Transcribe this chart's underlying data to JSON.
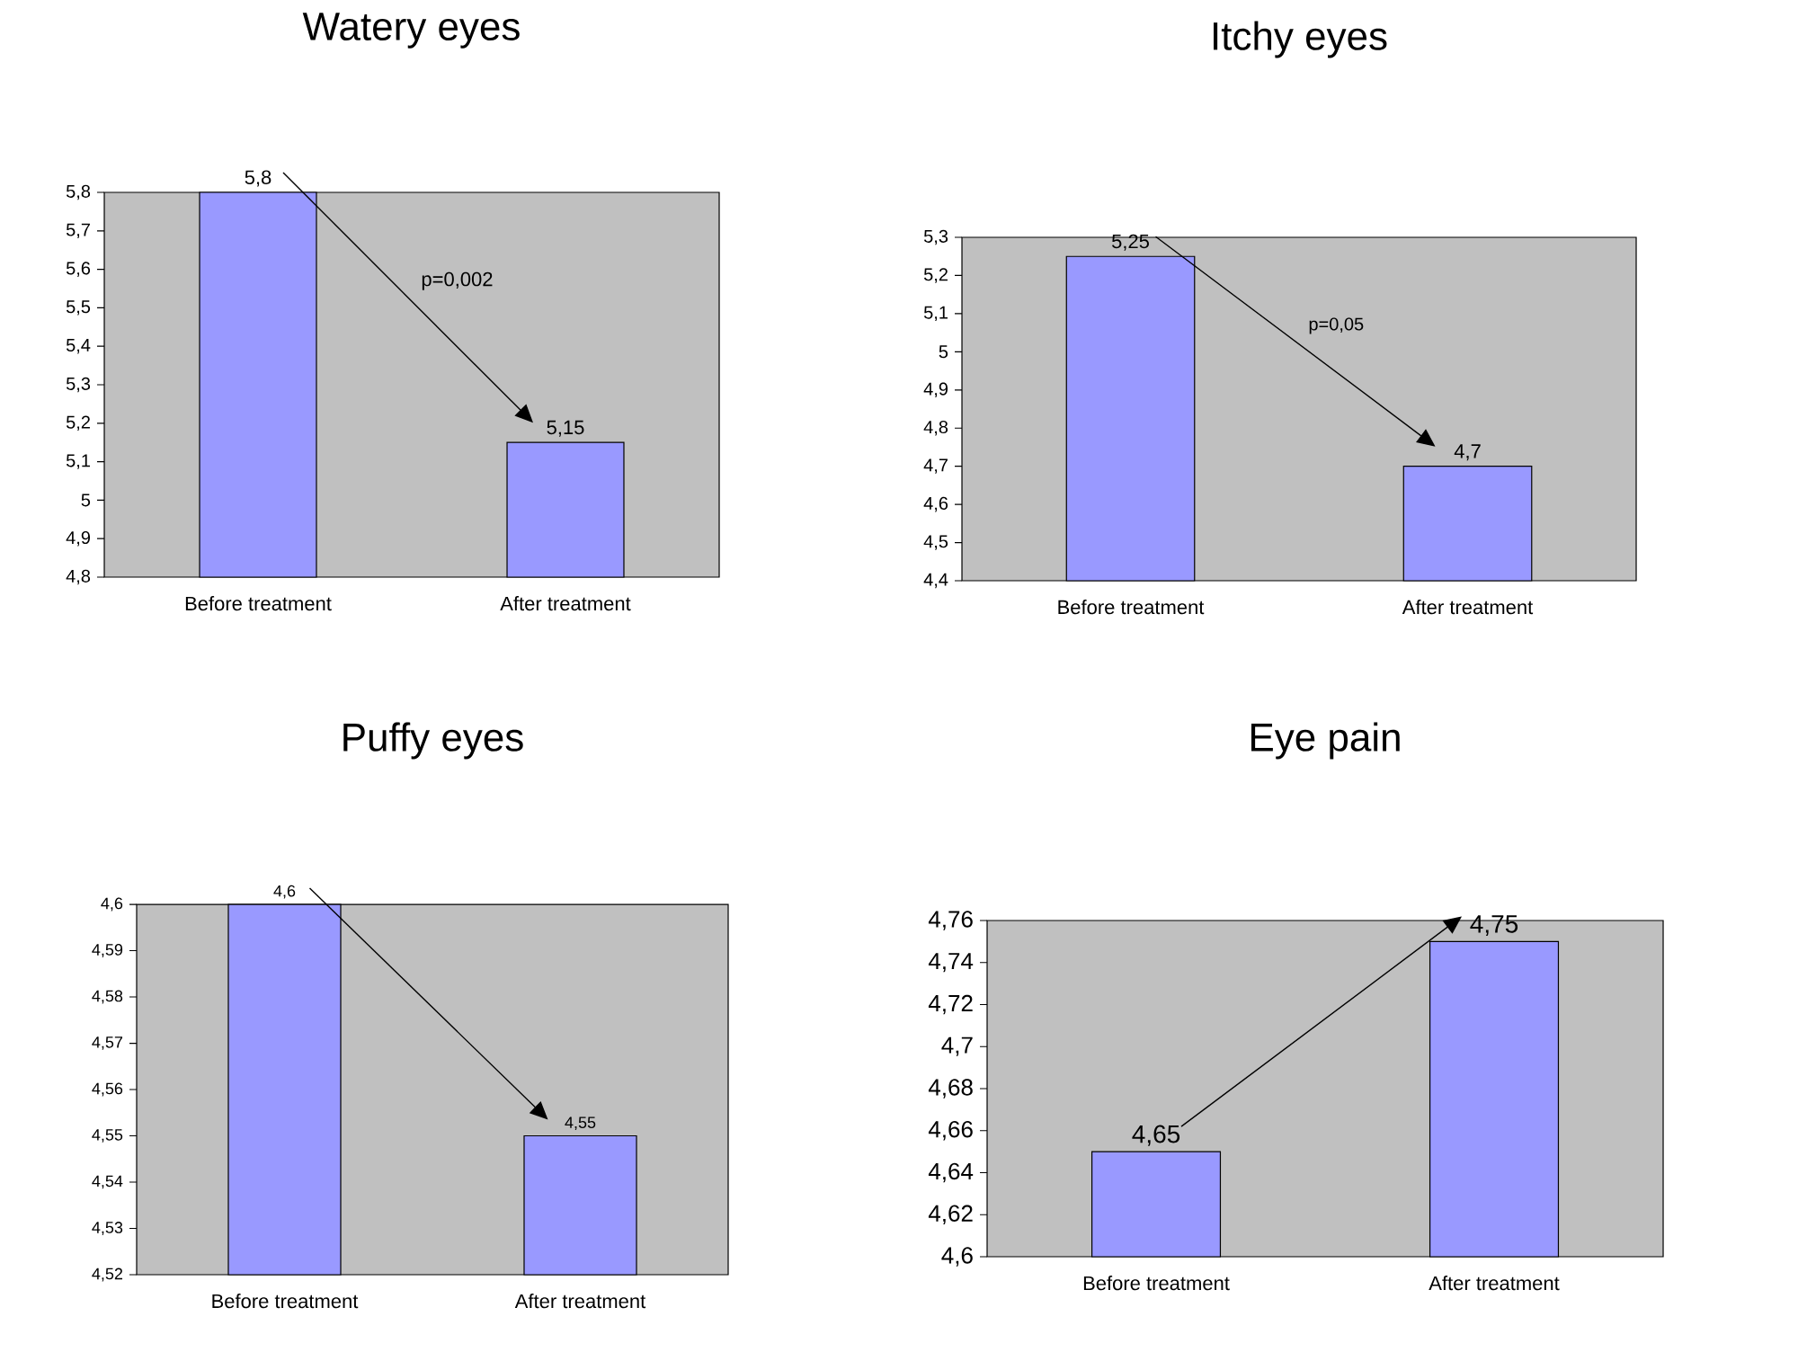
{
  "chart_data": [
    {
      "type": "bar",
      "title": "Watery eyes",
      "categories": [
        "Before treatment",
        "After treatment"
      ],
      "values": [
        5.8,
        5.15
      ],
      "value_labels": [
        "5,8",
        "5,15"
      ],
      "color": "#9999ff",
      "ylim": [
        4.8,
        5.8
      ],
      "yticks": [
        {
          "value": 4.8,
          "label": "4,8"
        },
        {
          "value": 4.9,
          "label": "4,9"
        },
        5,
        {
          "value": 5.1,
          "label": "5,1"
        },
        {
          "value": 5.2,
          "label": "5,2"
        },
        {
          "value": 5.3,
          "label": "5,3"
        },
        {
          "value": 5.4,
          "label": "5,4"
        },
        {
          "value": 5.5,
          "label": "5,5"
        },
        {
          "value": 5.6,
          "label": "5,6"
        },
        {
          "value": 5.7,
          "label": "5,7"
        },
        {
          "value": 5.8,
          "label": "5,8"
        }
      ],
      "annotations": [
        "p=0,002"
      ]
    },
    {
      "type": "bar",
      "title": "Itchy eyes",
      "categories": [
        "Before treatment",
        "After treatment"
      ],
      "values": [
        5.25,
        4.7
      ],
      "value_labels": [
        "5,25",
        "4,7"
      ],
      "color": "#9999ff",
      "ylim": [
        4.4,
        5.3
      ],
      "yticks": [
        {
          "value": 4.4,
          "label": "4,4"
        },
        {
          "value": 4.5,
          "label": "4,5"
        },
        {
          "value": 4.6,
          "label": "4,6"
        },
        {
          "value": 4.7,
          "label": "4,7"
        },
        {
          "value": 4.8,
          "label": "4,8"
        },
        {
          "value": 4.9,
          "label": "4,9"
        },
        5,
        {
          "value": 5.1,
          "label": "5,1"
        },
        {
          "value": 5.2,
          "label": "5,2"
        },
        {
          "value": 5.3,
          "label": "5,3"
        }
      ],
      "annotations": [
        "p=0,05"
      ]
    },
    {
      "type": "bar",
      "title": "Puffy eyes",
      "categories": [
        "Before treatment",
        "After treatment"
      ],
      "values": [
        4.6,
        4.55
      ],
      "value_labels": [
        "4,6",
        "4,55"
      ],
      "color": "#9999ff",
      "ylim": [
        4.52,
        4.6
      ],
      "yticks": [
        {
          "value": 4.52,
          "label": "4,52"
        },
        {
          "value": 4.53,
          "label": "4,53"
        },
        {
          "value": 4.54,
          "label": "4,54"
        },
        {
          "value": 4.55,
          "label": "4,55"
        },
        {
          "value": 4.56,
          "label": "4,56"
        },
        {
          "value": 4.57,
          "label": "4,57"
        },
        {
          "value": 4.58,
          "label": "4,58"
        },
        {
          "value": 4.59,
          "label": "4,59"
        },
        {
          "value": 4.6,
          "label": "4,6"
        }
      ]
    },
    {
      "type": "bar",
      "title": "Eye pain",
      "categories": [
        "Before treatment",
        "After treatment"
      ],
      "values": [
        4.65,
        4.75
      ],
      "value_labels": [
        "4,65",
        "4,75"
      ],
      "color": "#9999ff",
      "ylim": [
        4.6,
        4.76
      ],
      "yticks": [
        {
          "value": 4.6,
          "label": "4,6"
        },
        {
          "value": 4.62,
          "label": "4,62"
        },
        {
          "value": 4.64,
          "label": "4,64"
        },
        {
          "value": 4.66,
          "label": "4,66"
        },
        {
          "value": 4.68,
          "label": "4,68"
        },
        {
          "value": 4.7,
          "label": "4,7"
        },
        {
          "value": 4.72,
          "label": "4,72"
        },
        {
          "value": 4.74,
          "label": "4,74"
        },
        {
          "value": 4.76,
          "label": "4,76"
        }
      ]
    }
  ]
}
